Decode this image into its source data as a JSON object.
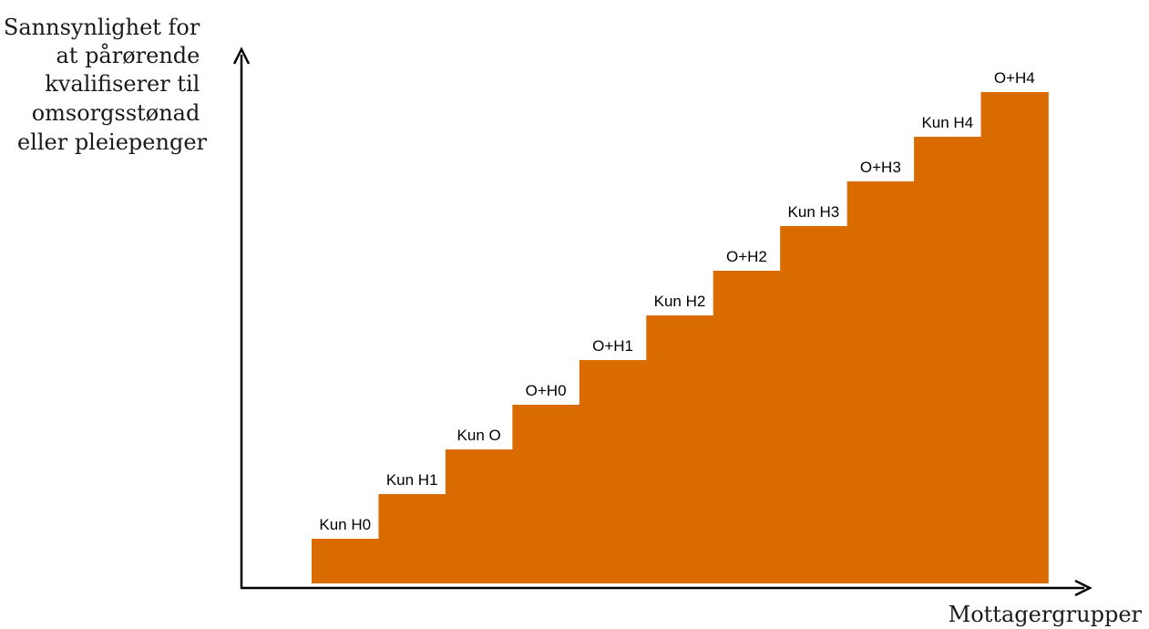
{
  "chart_data": {
    "type": "bar",
    "categories": [
      "Kun H0",
      "Kun H1",
      "Kun O",
      "O+H0",
      "O+H1",
      "Kun H2",
      "O+H2",
      "Kun H3",
      "O+H3",
      "Kun H4",
      "O+H4"
    ],
    "values": [
      1,
      2,
      3,
      4,
      5,
      6,
      7,
      8,
      9,
      10,
      11
    ],
    "ylim": [
      0,
      11
    ],
    "ylabel_lines": [
      "Sannsynlighet for",
      "at pårørende",
      "kvalifiserer til",
      "omsorgsstønad",
      "eller pleiepenger"
    ],
    "xlabel": "Mottagergrupper",
    "bar_color": "#d96b00",
    "axis_color": "#000000",
    "grid": false
  }
}
